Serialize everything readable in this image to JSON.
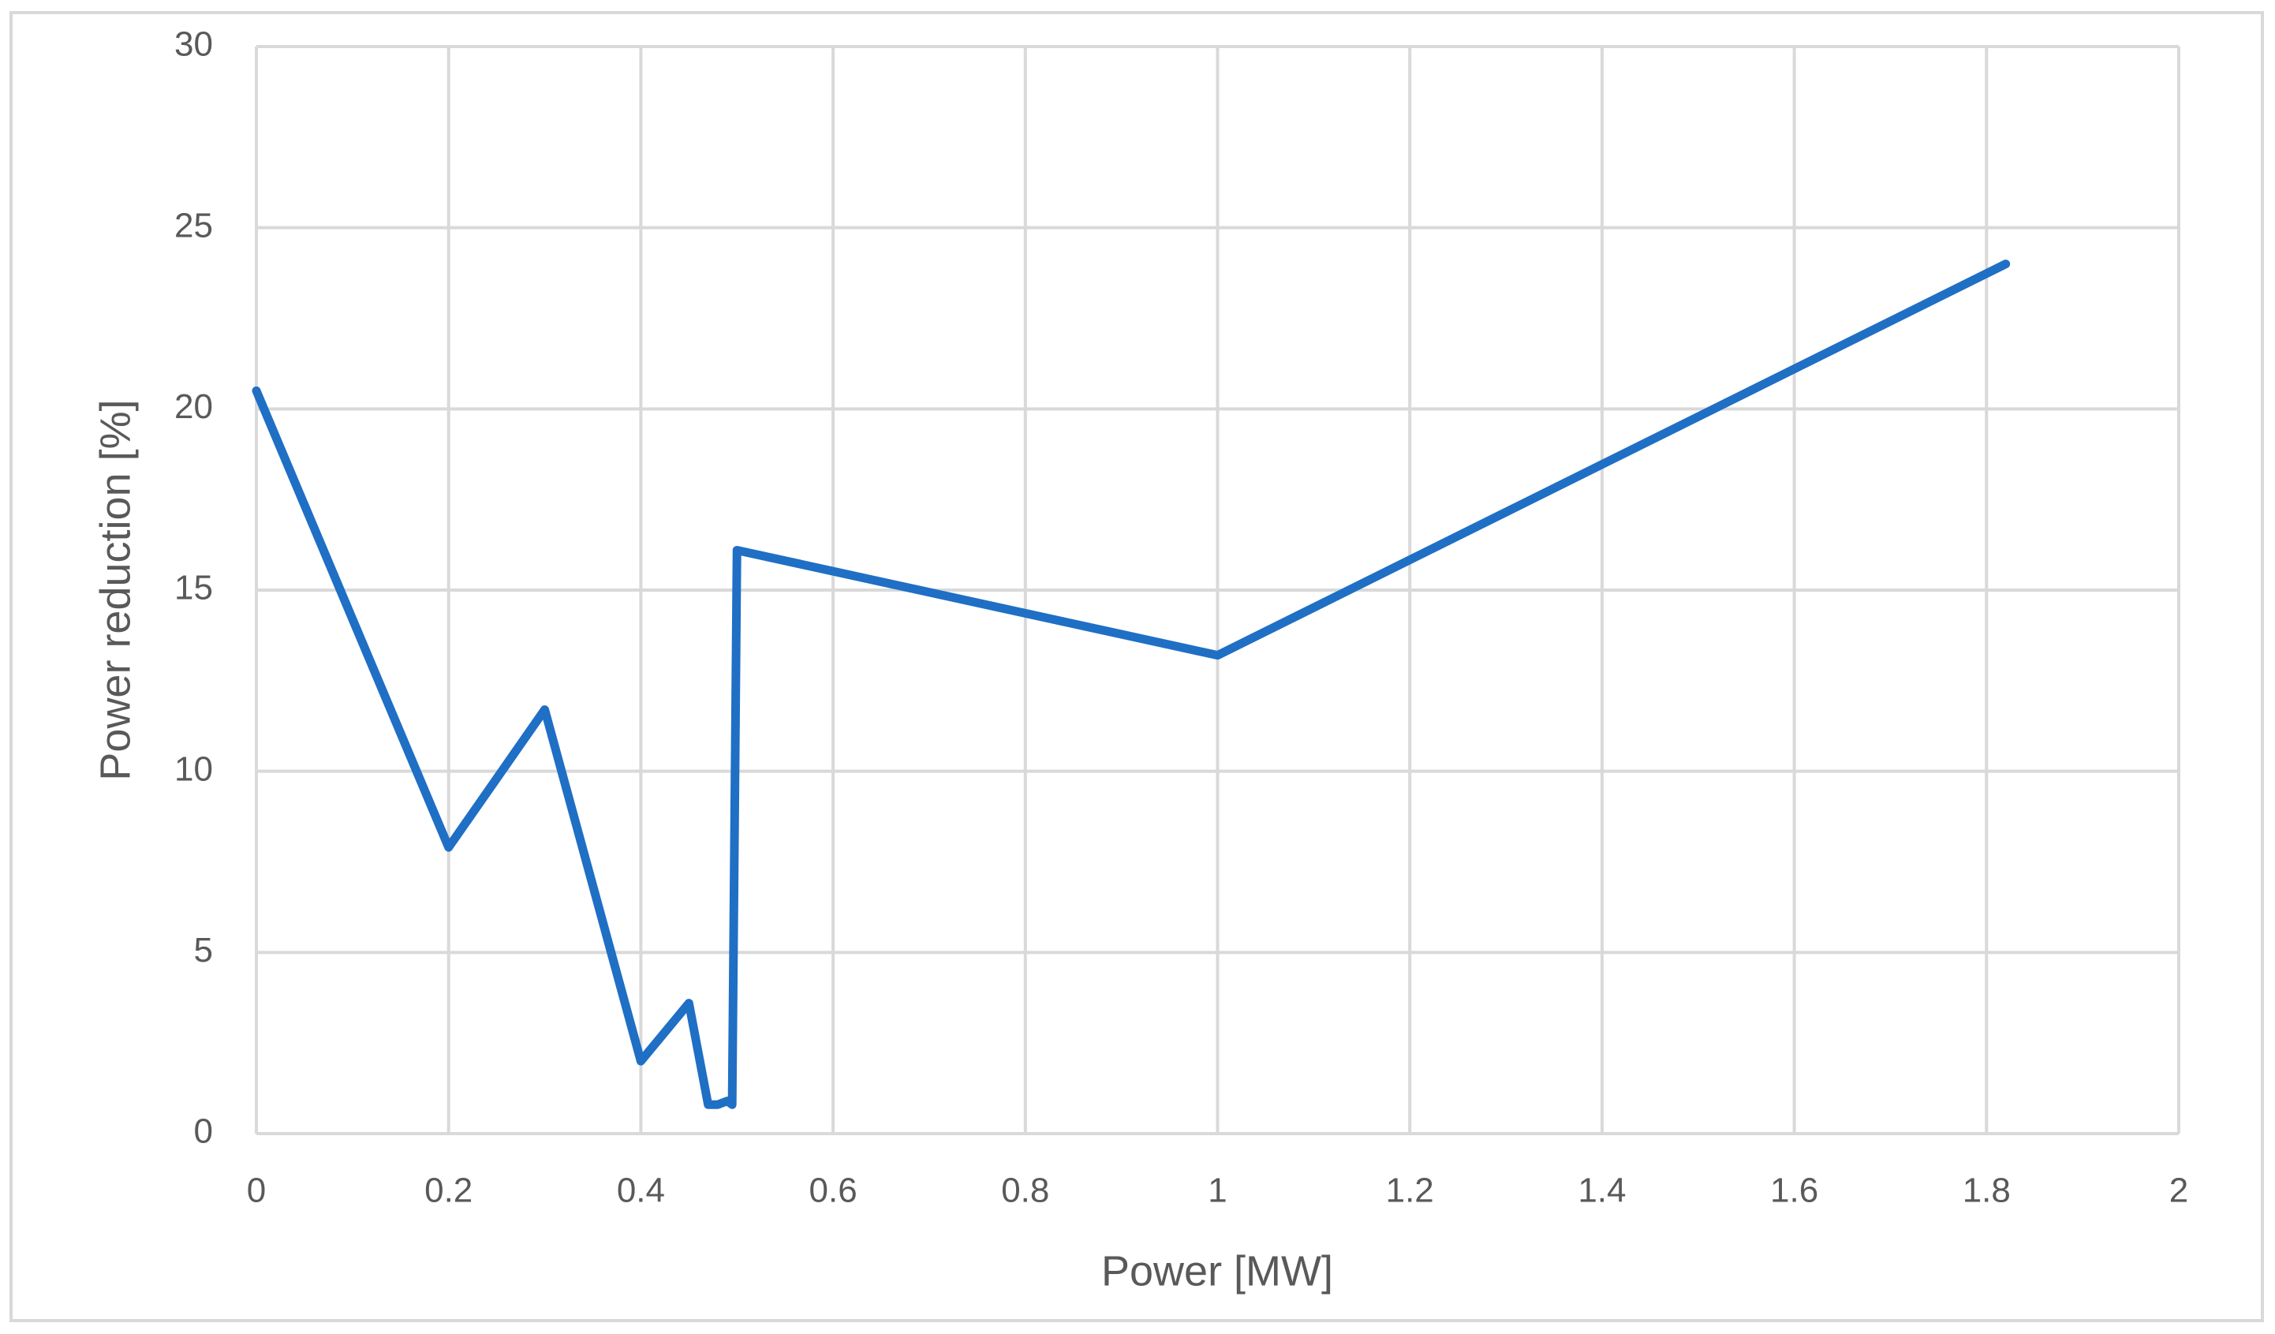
{
  "chart_data": {
    "type": "line",
    "x_label": "Power [MW]",
    "y_label": "Power reduction [%]",
    "x": [
      0,
      0.2,
      0.3,
      0.4,
      0.45,
      0.47,
      0.48,
      0.49,
      0.495,
      0.5,
      1,
      1.82
    ],
    "series": [
      {
        "color": "#1f6fc5",
        "values": [
          20.5,
          7.9,
          11.7,
          2.0,
          3.6,
          0.8,
          0.8,
          0.9,
          0.8,
          16.1,
          13.2,
          24.0
        ]
      }
    ],
    "xlim": [
      0,
      2
    ],
    "xticks": [
      0,
      0.2,
      0.4,
      0.6,
      0.8,
      1,
      1.2,
      1.4,
      1.6,
      1.8,
      2
    ],
    "ylim": [
      0,
      30
    ],
    "yticks": [
      0,
      5,
      10,
      15,
      20,
      25,
      30
    ],
    "grid": true
  }
}
